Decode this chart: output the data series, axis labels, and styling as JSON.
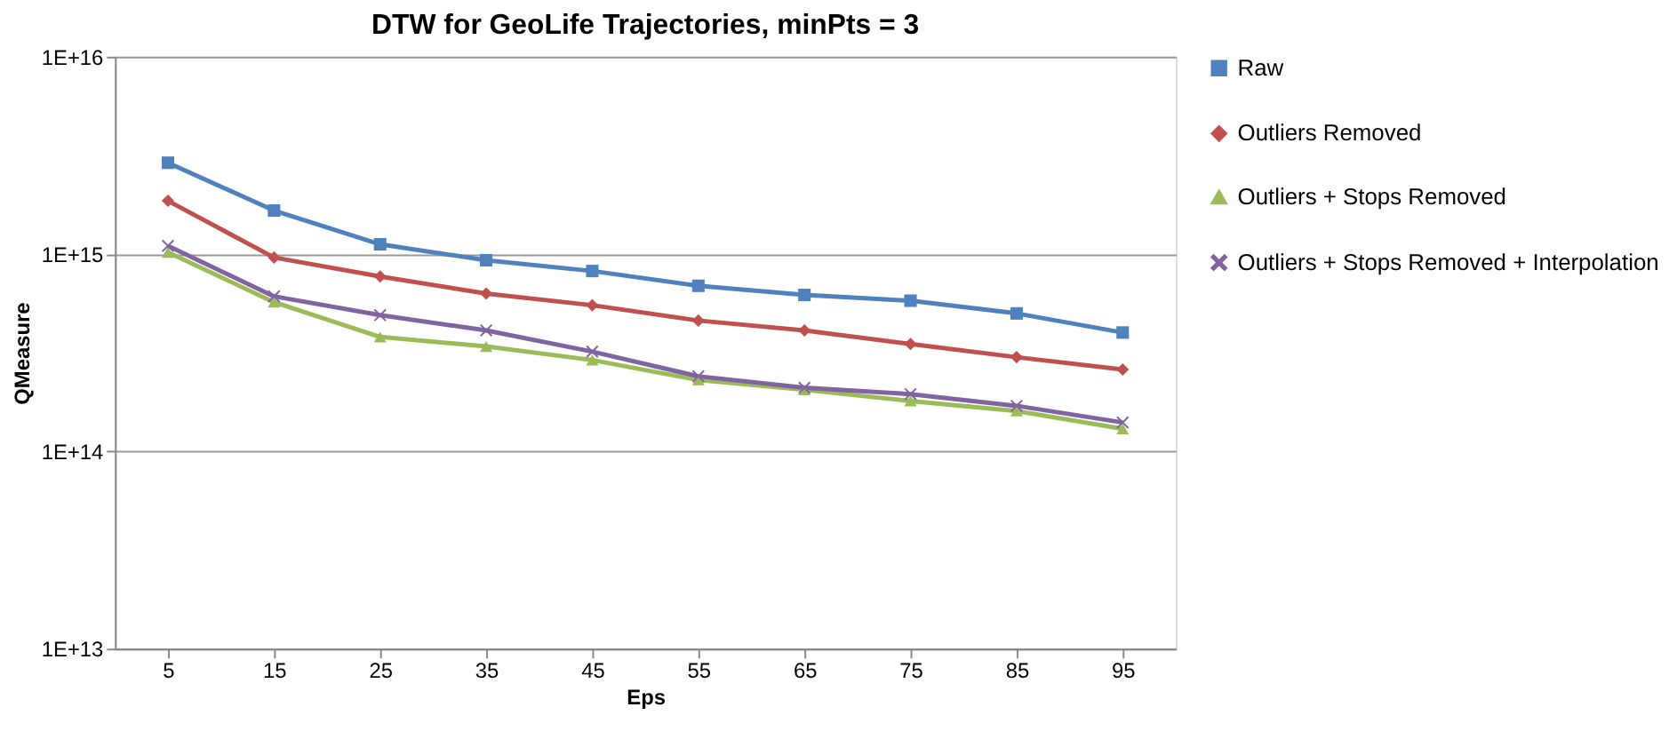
{
  "chart_data": {
    "type": "line",
    "title": "DTW for GeoLife Trajectories, minPts = 3",
    "xlabel": "Eps",
    "ylabel": "QMeasure",
    "categories": [
      "5",
      "15",
      "25",
      "35",
      "45",
      "55",
      "65",
      "75",
      "85",
      "95"
    ],
    "series": [
      {
        "name": "Raw",
        "color": "#4f81bd",
        "marker": "square",
        "values": [
          2900000000000000.0,
          1660000000000000.0,
          1120000000000000.0,
          930000000000000.0,
          820000000000000.0,
          690000000000000.0,
          620000000000000.0,
          580000000000000.0,
          500000000000000.0,
          400000000000000.0
        ]
      },
      {
        "name": "Outliers Removed",
        "color": "#c0504d",
        "marker": "diamond",
        "values": [
          1860000000000000.0,
          960000000000000.0,
          770000000000000.0,
          630000000000000.0,
          550000000000000.0,
          460000000000000.0,
          410000000000000.0,
          350000000000000.0,
          300000000000000.0,
          260000000000000.0
        ]
      },
      {
        "name": "Outliers + Stops Removed",
        "color": "#9bbb59",
        "marker": "triangle",
        "values": [
          1020000000000000.0,
          570000000000000.0,
          380000000000000.0,
          340000000000000.0,
          290000000000000.0,
          230000000000000.0,
          205000000000000.0,
          180000000000000.0,
          160000000000000.0,
          130000000000000.0
        ]
      },
      {
        "name": "Outliers + Stops Removed + Interpolation",
        "color": "#8064a2",
        "marker": "cross",
        "values": [
          1100000000000000.0,
          610000000000000.0,
          490000000000000.0,
          410000000000000.0,
          320000000000000.0,
          240000000000000.0,
          210000000000000.0,
          195000000000000.0,
          170000000000000.0,
          140000000000000.0
        ]
      }
    ],
    "log": "y",
    "ylim": [
      10000000000000.0,
      1e+16
    ],
    "yticks": [
      {
        "value": 10000000000000.0,
        "label": "1E+13"
      },
      {
        "value": 100000000000000.0,
        "label": "1E+14"
      },
      {
        "value": 1000000000000000.0,
        "label": "1E+15"
      },
      {
        "value": 1e+16,
        "label": "1E+16"
      }
    ],
    "grid": "y",
    "legend": "right",
    "line_style": "solid"
  }
}
